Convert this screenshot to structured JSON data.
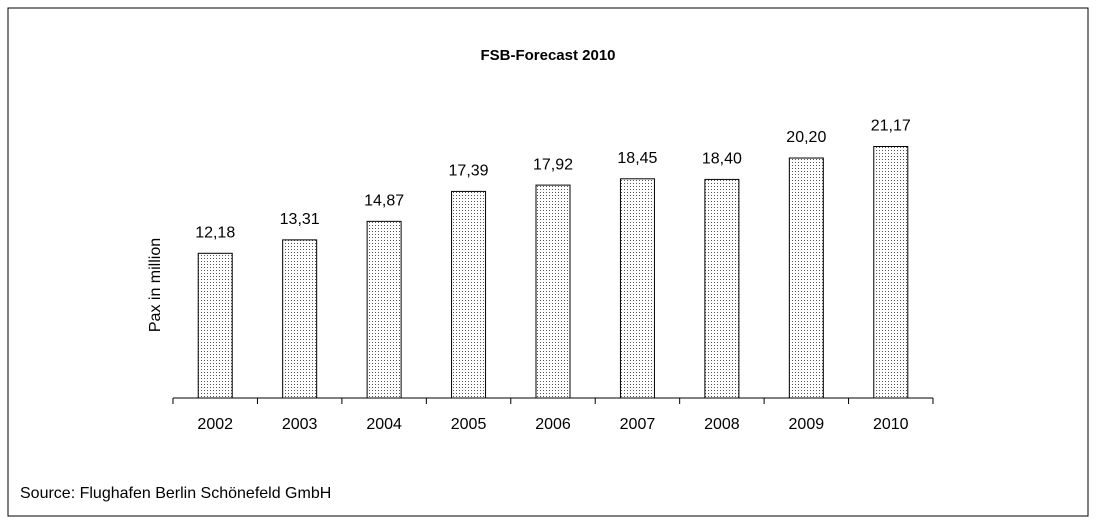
{
  "chart_data": {
    "type": "bar",
    "title": "FSB-Forecast 2010",
    "y_label": "Pax in million",
    "source": "Source: Flughafen Berlin Schönefeld GmbH",
    "categories": [
      "2002",
      "2003",
      "2004",
      "2005",
      "2006",
      "2007",
      "2008",
      "2009",
      "2010"
    ],
    "values": [
      12.18,
      13.31,
      14.87,
      17.39,
      17.92,
      18.45,
      18.4,
      20.2,
      21.17
    ],
    "value_labels": [
      "12,18",
      "13,31",
      "14,87",
      "17,39",
      "17,92",
      "18,45",
      "18,40",
      "20,20",
      "21,17"
    ],
    "ylim": [
      0,
      25
    ]
  }
}
